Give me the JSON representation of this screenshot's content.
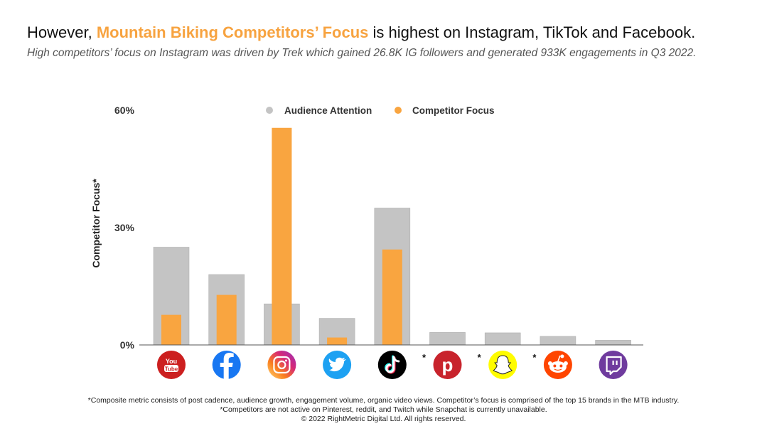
{
  "header": {
    "title_prefix": "However,",
    "title_highlight": "Mountain Biking Competitors’ Focus",
    "title_suffix": "is highest on Instagram, TikTok and Facebook.",
    "subtitle": "High competitors’ focus on Instagram was driven by Trek which gained 26.8K IG followers and generated 933K engagements in Q3 2022."
  },
  "colors": {
    "audience": "#c4c4c4",
    "competitor": "#f9a540",
    "highlight": "#f7a340"
  },
  "chart_data": {
    "type": "bar",
    "title": "",
    "ylabel": "Competitor Focus*",
    "xlabel": "",
    "ylim": [
      0,
      60
    ],
    "yticks": [
      0,
      30,
      60
    ],
    "ytick_labels": [
      "0%",
      "30%",
      "60%"
    ],
    "legend": {
      "position": "top",
      "entries": [
        "Audience Attention",
        "Competitor Focus"
      ]
    },
    "categories": [
      "YouTube",
      "Facebook",
      "Instagram",
      "Twitter",
      "TikTok",
      "Pinterest",
      "Snapchat",
      "Reddit",
      "Twitch"
    ],
    "category_marks": [
      "",
      "",
      "",
      "",
      "",
      "*",
      "*",
      "*",
      ""
    ],
    "icons": [
      "youtube-icon",
      "facebook-icon",
      "instagram-icon",
      "twitter-icon",
      "tiktok-icon",
      "pinterest-icon",
      "snapchat-icon",
      "reddit-icon",
      "twitch-icon"
    ],
    "series": [
      {
        "name": "Audience Attention",
        "values": [
          25,
          18,
          10.5,
          6.8,
          35,
          3.2,
          3.1,
          2.2,
          1.2
        ]
      },
      {
        "name": "Competitor Focus",
        "values": [
          7.7,
          12.8,
          55.5,
          1.9,
          24.4,
          0,
          0,
          0,
          0
        ]
      }
    ]
  },
  "footer": {
    "line1": "*Composite metric consists of post cadence, audience growth, engagement volume, organic video views. Competitor’s focus is comprised of the top 15 brands in the MTB industry.",
    "line2": "*Competitors are not active on Pinterest, reddit, and Twitch while Snapchat is currently unavailable.",
    "line3": "© 2022 RightMetric Digital Ltd. All rights reserved."
  }
}
